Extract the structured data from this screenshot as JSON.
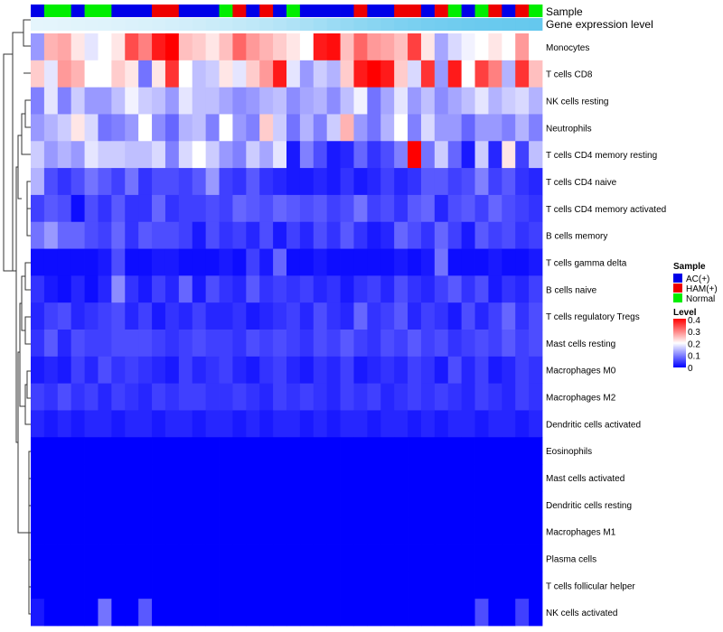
{
  "chart_data": {
    "type": "heatmap",
    "annotation_tracks": [
      {
        "name": "Sample",
        "label": "Sample"
      },
      {
        "name": "Gene expression level",
        "label": "Gene expression level"
      }
    ],
    "sample_groups": [
      "A",
      "N",
      "N",
      "A",
      "N",
      "N",
      "A",
      "A",
      "A",
      "H",
      "H",
      "A",
      "A",
      "A",
      "N",
      "H",
      "A",
      "H",
      "A",
      "N",
      "A",
      "A",
      "A",
      "A",
      "H",
      "A",
      "A",
      "H",
      "H",
      "A",
      "H",
      "N",
      "A",
      "N",
      "H",
      "A",
      "H",
      "N"
    ],
    "expression_track": [
      0.02,
      0.03,
      0.04,
      0.05,
      0.06,
      0.07,
      0.08,
      0.1,
      0.11,
      0.13,
      0.15,
      0.17,
      0.19,
      0.22,
      0.25,
      0.28,
      0.31,
      0.35,
      0.39,
      0.43,
      0.48,
      0.53,
      0.58,
      0.63,
      0.68,
      0.72,
      0.76,
      0.8,
      0.83,
      0.86,
      0.89,
      0.91,
      0.93,
      0.95,
      0.96,
      0.97,
      0.98,
      0.99
    ],
    "rows": [
      "Monocytes",
      "T cells CD8",
      "NK cells resting",
      "Neutrophils",
      "T cells CD4 memory resting",
      "T cells CD4 naive",
      "T cells CD4 memory activated",
      "B cells memory",
      "T cells gamma delta",
      "B cells naive",
      "T cells regulatory  Tregs",
      "Mast cells resting",
      "Macrophages M0",
      "Macrophages M2",
      "Dendritic cells activated",
      "Eosinophils",
      "Mast cells activated",
      "Dendritic cells resting",
      "Macrophages M1",
      "Plasma cells",
      "T cells follicular helper",
      "NK cells activated"
    ],
    "values": [
      [
        0.12,
        0.26,
        0.27,
        0.22,
        0.18,
        0.2,
        0.22,
        0.34,
        0.3,
        0.38,
        0.4,
        0.25,
        0.24,
        0.22,
        0.25,
        0.32,
        0.28,
        0.26,
        0.24,
        0.22,
        0.2,
        0.38,
        0.39,
        0.25,
        0.32,
        0.28,
        0.27,
        0.25,
        0.35,
        0.22,
        0.13,
        0.17,
        0.19,
        0.2,
        0.22,
        0.2,
        0.28,
        0.2
      ],
      [
        0.24,
        0.18,
        0.28,
        0.26,
        0.2,
        0.2,
        0.24,
        0.22,
        0.09,
        0.22,
        0.36,
        0.2,
        0.15,
        0.16,
        0.22,
        0.18,
        0.24,
        0.28,
        0.38,
        0.18,
        0.12,
        0.16,
        0.14,
        0.24,
        0.38,
        0.4,
        0.38,
        0.24,
        0.17,
        0.36,
        0.12,
        0.38,
        0.2,
        0.35,
        0.3,
        0.14,
        0.36,
        0.25
      ],
      [
        0.1,
        0.18,
        0.1,
        0.16,
        0.12,
        0.12,
        0.15,
        0.19,
        0.16,
        0.15,
        0.12,
        0.18,
        0.15,
        0.15,
        0.13,
        0.11,
        0.12,
        0.14,
        0.15,
        0.11,
        0.13,
        0.14,
        0.11,
        0.15,
        0.19,
        0.09,
        0.13,
        0.18,
        0.12,
        0.15,
        0.11,
        0.13,
        0.15,
        0.18,
        0.14,
        0.16,
        0.17,
        0.14
      ],
      [
        0.12,
        0.14,
        0.16,
        0.22,
        0.17,
        0.09,
        0.1,
        0.12,
        0.2,
        0.11,
        0.08,
        0.14,
        0.15,
        0.1,
        0.2,
        0.12,
        0.1,
        0.24,
        0.16,
        0.09,
        0.14,
        0.1,
        0.16,
        0.26,
        0.12,
        0.09,
        0.14,
        0.2,
        0.1,
        0.17,
        0.12,
        0.12,
        0.08,
        0.12,
        0.12,
        0.1,
        0.14,
        0.1
      ],
      [
        0.16,
        0.12,
        0.14,
        0.12,
        0.18,
        0.16,
        0.16,
        0.15,
        0.15,
        0.17,
        0.1,
        0.17,
        0.2,
        0.16,
        0.12,
        0.1,
        0.16,
        0.13,
        0.18,
        0.02,
        0.1,
        0.06,
        0.02,
        0.03,
        0.08,
        0.04,
        0.06,
        0.1,
        0.44,
        0.09,
        0.16,
        0.08,
        0.02,
        0.16,
        0.03,
        0.22,
        0.05,
        0.15
      ],
      [
        0.14,
        0.06,
        0.04,
        0.06,
        0.09,
        0.07,
        0.05,
        0.09,
        0.04,
        0.06,
        0.06,
        0.05,
        0.07,
        0.12,
        0.05,
        0.04,
        0.07,
        0.04,
        0.03,
        0.02,
        0.02,
        0.03,
        0.02,
        0.04,
        0.02,
        0.03,
        0.05,
        0.03,
        0.04,
        0.07,
        0.07,
        0.05,
        0.06,
        0.1,
        0.05,
        0.07,
        0.04,
        0.03
      ],
      [
        0.05,
        0.07,
        0.06,
        0.01,
        0.06,
        0.04,
        0.07,
        0.04,
        0.04,
        0.08,
        0.04,
        0.05,
        0.05,
        0.06,
        0.05,
        0.08,
        0.07,
        0.06,
        0.08,
        0.07,
        0.06,
        0.07,
        0.05,
        0.06,
        0.09,
        0.05,
        0.06,
        0.04,
        0.07,
        0.08,
        0.03,
        0.06,
        0.07,
        0.05,
        0.08,
        0.06,
        0.05,
        0.04
      ],
      [
        0.09,
        0.12,
        0.08,
        0.08,
        0.06,
        0.05,
        0.08,
        0.04,
        0.07,
        0.06,
        0.06,
        0.05,
        0.02,
        0.06,
        0.04,
        0.05,
        0.03,
        0.06,
        0.02,
        0.05,
        0.03,
        0.06,
        0.04,
        0.07,
        0.04,
        0.02,
        0.03,
        0.08,
        0.06,
        0.04,
        0.08,
        0.05,
        0.02,
        0.07,
        0.05,
        0.06,
        0.04,
        0.05
      ],
      [
        0.01,
        0.01,
        0.01,
        0.01,
        0.01,
        0.02,
        0.06,
        0.01,
        0.01,
        0.02,
        0.02,
        0.01,
        0.01,
        0.01,
        0.02,
        0.01,
        0.05,
        0.02,
        0.08,
        0.01,
        0.01,
        0.02,
        0.01,
        0.01,
        0.01,
        0.01,
        0.01,
        0.02,
        0.01,
        0.02,
        0.09,
        0.01,
        0.01,
        0.01,
        0.02,
        0.01,
        0.01,
        0.02
      ],
      [
        0.04,
        0.02,
        0.01,
        0.03,
        0.01,
        0.03,
        0.11,
        0.04,
        0.02,
        0.05,
        0.03,
        0.08,
        0.02,
        0.06,
        0.04,
        0.03,
        0.07,
        0.04,
        0.05,
        0.04,
        0.05,
        0.03,
        0.04,
        0.02,
        0.04,
        0.05,
        0.03,
        0.06,
        0.04,
        0.03,
        0.05,
        0.07,
        0.04,
        0.06,
        0.02,
        0.04,
        0.03,
        0.05
      ],
      [
        0.03,
        0.05,
        0.06,
        0.03,
        0.04,
        0.05,
        0.06,
        0.03,
        0.05,
        0.02,
        0.04,
        0.03,
        0.05,
        0.03,
        0.03,
        0.04,
        0.02,
        0.03,
        0.04,
        0.05,
        0.03,
        0.06,
        0.04,
        0.03,
        0.08,
        0.04,
        0.05,
        0.07,
        0.03,
        0.05,
        0.04,
        0.02,
        0.06,
        0.03,
        0.05,
        0.08,
        0.04,
        0.06
      ],
      [
        0.04,
        0.07,
        0.03,
        0.06,
        0.05,
        0.05,
        0.06,
        0.06,
        0.06,
        0.05,
        0.04,
        0.05,
        0.06,
        0.05,
        0.05,
        0.04,
        0.06,
        0.05,
        0.06,
        0.05,
        0.04,
        0.06,
        0.05,
        0.07,
        0.05,
        0.04,
        0.06,
        0.05,
        0.07,
        0.05,
        0.06,
        0.04,
        0.05,
        0.06,
        0.05,
        0.07,
        0.05,
        0.06
      ],
      [
        0.02,
        0.03,
        0.02,
        0.05,
        0.03,
        0.06,
        0.04,
        0.05,
        0.04,
        0.03,
        0.02,
        0.05,
        0.03,
        0.04,
        0.05,
        0.03,
        0.02,
        0.04,
        0.05,
        0.03,
        0.02,
        0.04,
        0.03,
        0.05,
        0.02,
        0.03,
        0.04,
        0.03,
        0.05,
        0.04,
        0.02,
        0.06,
        0.03,
        0.05,
        0.02,
        0.03,
        0.05,
        0.04
      ],
      [
        0.05,
        0.04,
        0.06,
        0.04,
        0.05,
        0.03,
        0.05,
        0.04,
        0.03,
        0.05,
        0.04,
        0.05,
        0.05,
        0.04,
        0.04,
        0.05,
        0.04,
        0.03,
        0.05,
        0.04,
        0.05,
        0.04,
        0.03,
        0.05,
        0.04,
        0.05,
        0.03,
        0.04,
        0.05,
        0.04,
        0.05,
        0.04,
        0.03,
        0.05,
        0.04,
        0.03,
        0.05,
        0.04
      ],
      [
        0.03,
        0.02,
        0.03,
        0.02,
        0.03,
        0.03,
        0.02,
        0.03,
        0.03,
        0.02,
        0.03,
        0.03,
        0.02,
        0.03,
        0.03,
        0.02,
        0.03,
        0.02,
        0.03,
        0.03,
        0.02,
        0.03,
        0.02,
        0.03,
        0.03,
        0.02,
        0.03,
        0.03,
        0.02,
        0.03,
        0.02,
        0.03,
        0.03,
        0.02,
        0.03,
        0.03,
        0.02,
        0.03
      ],
      [
        0.0,
        0.0,
        0.0,
        0.0,
        0.0,
        0.0,
        0.0,
        0.0,
        0.0,
        0.0,
        0.0,
        0.0,
        0.0,
        0.0,
        0.0,
        0.0,
        0.0,
        0.0,
        0.0,
        0.0,
        0.0,
        0.0,
        0.0,
        0.0,
        0.0,
        0.0,
        0.0,
        0.0,
        0.0,
        0.0,
        0.0,
        0.0,
        0.0,
        0.0,
        0.0,
        0.0,
        0.0,
        0.0
      ],
      [
        0.0,
        0.0,
        0.0,
        0.0,
        0.0,
        0.0,
        0.0,
        0.0,
        0.0,
        0.0,
        0.0,
        0.0,
        0.0,
        0.0,
        0.0,
        0.0,
        0.0,
        0.0,
        0.0,
        0.0,
        0.0,
        0.0,
        0.0,
        0.0,
        0.0,
        0.0,
        0.0,
        0.0,
        0.0,
        0.0,
        0.0,
        0.0,
        0.0,
        0.0,
        0.0,
        0.0,
        0.0,
        0.0
      ],
      [
        0.0,
        0.0,
        0.0,
        0.0,
        0.0,
        0.0,
        0.0,
        0.0,
        0.0,
        0.0,
        0.0,
        0.0,
        0.0,
        0.0,
        0.0,
        0.0,
        0.0,
        0.0,
        0.0,
        0.0,
        0.0,
        0.0,
        0.0,
        0.0,
        0.0,
        0.0,
        0.0,
        0.0,
        0.0,
        0.0,
        0.0,
        0.0,
        0.0,
        0.0,
        0.0,
        0.0,
        0.0,
        0.0
      ],
      [
        0.0,
        0.0,
        0.0,
        0.0,
        0.0,
        0.0,
        0.0,
        0.0,
        0.0,
        0.0,
        0.0,
        0.0,
        0.0,
        0.0,
        0.0,
        0.0,
        0.0,
        0.0,
        0.0,
        0.0,
        0.0,
        0.0,
        0.0,
        0.0,
        0.0,
        0.0,
        0.0,
        0.0,
        0.0,
        0.0,
        0.0,
        0.0,
        0.0,
        0.0,
        0.0,
        0.0,
        0.0,
        0.0
      ],
      [
        0.0,
        0.0,
        0.0,
        0.0,
        0.0,
        0.0,
        0.0,
        0.0,
        0.0,
        0.0,
        0.0,
        0.0,
        0.0,
        0.0,
        0.0,
        0.0,
        0.0,
        0.0,
        0.0,
        0.0,
        0.0,
        0.0,
        0.0,
        0.0,
        0.0,
        0.0,
        0.0,
        0.0,
        0.0,
        0.0,
        0.0,
        0.0,
        0.0,
        0.0,
        0.0,
        0.0,
        0.0,
        0.0
      ],
      [
        0.0,
        0.0,
        0.0,
        0.0,
        0.0,
        0.0,
        0.0,
        0.0,
        0.0,
        0.0,
        0.0,
        0.0,
        0.0,
        0.0,
        0.0,
        0.0,
        0.0,
        0.0,
        0.0,
        0.0,
        0.0,
        0.0,
        0.0,
        0.0,
        0.0,
        0.0,
        0.0,
        0.0,
        0.0,
        0.0,
        0.0,
        0.0,
        0.0,
        0.0,
        0.0,
        0.0,
        0.0,
        0.0
      ],
      [
        0.02,
        0.0,
        0.0,
        0.0,
        0.0,
        0.09,
        0.0,
        0.0,
        0.07,
        0.0,
        0.0,
        0.0,
        0.0,
        0.0,
        0.0,
        0.0,
        0.0,
        0.0,
        0.0,
        0.0,
        0.0,
        0.0,
        0.0,
        0.0,
        0.0,
        0.0,
        0.0,
        0.0,
        0.0,
        0.0,
        0.0,
        0.0,
        0.0,
        0.06,
        0.0,
        0.0,
        0.05,
        0.0
      ]
    ],
    "color_scale": {
      "min": 0,
      "max": 0.4,
      "low": "#0000ff",
      "mid": "#ffffff",
      "high": "#ff0000",
      "mid_value": 0.2
    },
    "legend": {
      "position": "right",
      "sample_title": "Sample",
      "sample_entries": [
        {
          "key": "A",
          "label": "AC(+)",
          "color": "#0000e8"
        },
        {
          "key": "H",
          "label": "HAM(+)",
          "color": "#ee0000"
        },
        {
          "key": "N",
          "label": "Normal",
          "color": "#00ee00"
        }
      ],
      "level_title": "Level",
      "level_ticks": [
        "0.4",
        "0.3",
        "0.2",
        "0.1",
        "0"
      ]
    },
    "dendrogram": "row clustering tree drawn at left"
  }
}
